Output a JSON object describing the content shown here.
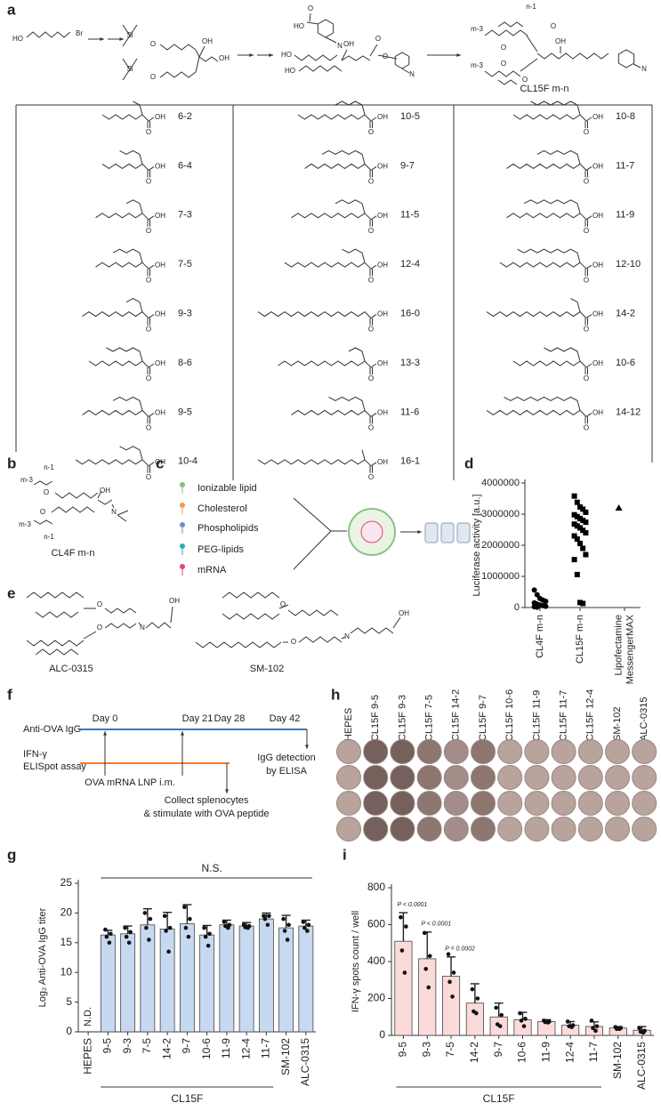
{
  "panel_labels": [
    "a",
    "b",
    "c",
    "d",
    "e",
    "f",
    "g",
    "h",
    "i"
  ],
  "scheme": {
    "molecules": [
      {
        "atoms": [
          "HO",
          "Br"
        ]
      },
      {
        "atoms": [
          "Si",
          "O",
          "Si",
          "O",
          "OH",
          "OH"
        ]
      },
      {
        "atoms": [
          "HO",
          "O",
          "N"
        ]
      },
      {
        "atoms": [
          "HO",
          "HO",
          "OH",
          "O",
          "O",
          "N"
        ]
      },
      {
        "atoms": [
          "n-1",
          "m-3",
          "O",
          "O",
          "OH",
          "m-3",
          "O",
          "O",
          "N"
        ]
      }
    ],
    "product": "CL15F m-n"
  },
  "acids": {
    "columns": [
      [
        "6-2",
        "6-4",
        "7-3",
        "7-5",
        "9-3",
        "8-6",
        "9-5",
        "10-4"
      ],
      [
        "10-5",
        "9-7",
        "11-5",
        "12-4",
        "16-0",
        "13-3",
        "11-6",
        "16-1"
      ],
      [
        "10-8",
        "11-7",
        "11-9",
        "12-10",
        "14-2",
        "10-6",
        "14-12"
      ]
    ],
    "carboxyl": [
      "O",
      "OH"
    ]
  },
  "cl4f": {
    "atoms": [
      "n-1",
      "m-3",
      "O",
      "OH",
      "O",
      "N",
      "m-3",
      "n-1"
    ],
    "name": "CL4F m-n"
  },
  "lnp": {
    "components": [
      "Ionizable lipid",
      "Cholesterol",
      "Phospholipids",
      "PEG-lipids",
      "mRNA"
    ]
  },
  "references": [
    {
      "atoms": [
        "O",
        "O",
        "N",
        "OH"
      ],
      "name": "ALC-0315"
    },
    {
      "atoms": [
        "O",
        "O",
        "N",
        "OH"
      ],
      "name": "SM-102"
    }
  ],
  "timeline": {
    "rows": [
      [
        "Anti-OVA IgG"
      ],
      [
        "IFN-γ",
        "ELISpot assay"
      ]
    ],
    "days": [
      "Day 0",
      "Day 21",
      "Day 28",
      "Day 42"
    ],
    "events": [
      [
        "OVA mRNA LNP i.m."
      ],
      [
        "Collect splenocytes",
        "& stimulate with OVA peptide"
      ],
      [
        "IgG detection",
        "by ELISA"
      ]
    ]
  },
  "elispot": {
    "columns": [
      "HEPES",
      "CL15F 9-5",
      "CL15F 9-3",
      "CL15F 7-5",
      "CL15F 14-2",
      "CL15F 9-7",
      "CL15F 10-6",
      "CL15F 11-9",
      "CL15F 11-7",
      "CL15F 12-4",
      "SM-102",
      "ALC-0315"
    ]
  },
  "chart_data": [
    {
      "type": "strip",
      "ylabel": "Luciferase activity [a.u.]",
      "categories": [
        [
          "CL4F m-n"
        ],
        [
          "CL15F m-n"
        ],
        [
          "Lipofectamine",
          "MessengerMAX"
        ]
      ],
      "values": [
        [
          560000,
          410000,
          290000,
          240000,
          200000,
          150000,
          110000,
          80000,
          60000,
          40000,
          25000,
          10000
        ],
        [
          3580000,
          3380000,
          3230000,
          3160000,
          3060000,
          2980000,
          2920000,
          2860000,
          2800000,
          2740000,
          2680000,
          2620000,
          2560000,
          2480000,
          2400000,
          2300000,
          2200000,
          2060000,
          1900000,
          1700000,
          1540000,
          1060000,
          160000,
          130000
        ],
        [
          3200000
        ]
      ],
      "markers": [
        "circle",
        "square",
        "triangle"
      ],
      "color": "#000000",
      "ylim": [
        0,
        4000000
      ],
      "yticks": [
        0,
        1000000,
        2000000,
        3000000,
        4000000
      ]
    },
    {
      "type": "bar",
      "ylabel": "Log₂ Anti-OVA IgG titer",
      "categories": [
        "HEPES",
        "9-5",
        "9-3",
        "7-5",
        "14-2",
        "9-7",
        "10-6",
        "11-9",
        "12-4",
        "11-7",
        "SM-102",
        "ALC-0315"
      ],
      "values": [
        null,
        16.3,
        16.5,
        18,
        17.3,
        18.2,
        16.3,
        18,
        17.8,
        19,
        17.5,
        17.8
      ],
      "errors": [
        null,
        0.8,
        1.3,
        2.7,
        2.8,
        3.2,
        1.6,
        0.8,
        0.6,
        1.0,
        2.1,
        1.0
      ],
      "points": [
        null,
        [
          17.2,
          16.5,
          16,
          15
        ],
        [
          17.5,
          16.8,
          16,
          15
        ],
        [
          20,
          19,
          17.5,
          15.5
        ],
        [
          19.5,
          17.5,
          17,
          13.5
        ],
        [
          21,
          19,
          17.5,
          16
        ],
        [
          17.5,
          16.5,
          16,
          14.5
        ],
        [
          18.5,
          18,
          17.8,
          17.5
        ],
        [
          18,
          17.8,
          17.6,
          17.5
        ],
        [
          19.5,
          19.5,
          19,
          18
        ],
        [
          19,
          18,
          17,
          15.5
        ],
        [
          18.5,
          18,
          17.5,
          17
        ]
      ],
      "color": "#c6d9f1",
      "nd_label": "N.D.",
      "ns_label": "N.S.",
      "group_label": "CL15F",
      "ylim": [
        0,
        25
      ],
      "yticks": [
        0,
        5,
        10,
        15,
        20,
        25
      ]
    },
    {
      "type": "bar",
      "ylabel": "IFN-γ spots count / well",
      "categories": [
        "9-5",
        "9-3",
        "7-5",
        "14-2",
        "9-7",
        "10-6",
        "11-9",
        "12-4",
        "11-7",
        "SM-102",
        "ALC-0315"
      ],
      "values": [
        510,
        415,
        320,
        175,
        100,
        85,
        75,
        55,
        48,
        40,
        28
      ],
      "errors": [
        155,
        145,
        105,
        105,
        75,
        40,
        10,
        20,
        25,
        8,
        20
      ],
      "points": [
        [
          640,
          590,
          460,
          340
        ],
        [
          555,
          430,
          360,
          260
        ],
        [
          440,
          340,
          290,
          210
        ],
        [
          250,
          200,
          130,
          120
        ],
        [
          150,
          110,
          60,
          50
        ],
        [
          120,
          90,
          80,
          50
        ],
        [
          80,
          75,
          72,
          70
        ],
        [
          75,
          55,
          50,
          45
        ],
        [
          80,
          50,
          40,
          25
        ],
        [
          45,
          40,
          35,
          35
        ],
        [
          40,
          25,
          20,
          15
        ]
      ],
      "p_values": [
        "P < 0.0001",
        "P < 0.0001",
        "P = 0.0002"
      ],
      "color": "#fbdada",
      "group_label": "CL15F",
      "ylim": [
        0,
        800
      ],
      "yticks": [
        0,
        200,
        400,
        600,
        800
      ]
    }
  ]
}
